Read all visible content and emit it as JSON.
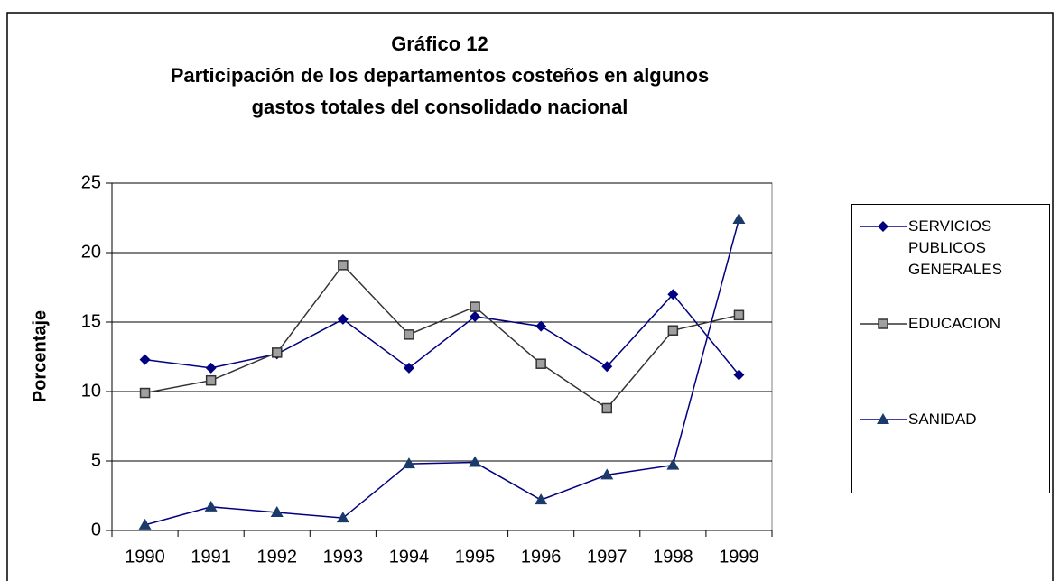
{
  "chart_data": {
    "type": "line",
    "title": [
      "Gráfico 12",
      "Participación de los departamentos costeños en algunos",
      "gastos totales del consolidado nacional"
    ],
    "y_label": "Porcentaje",
    "categories": [
      "1990",
      "1991",
      "1992",
      "1993",
      "1994",
      "1995",
      "1996",
      "1997",
      "1998",
      "1999"
    ],
    "series": [
      {
        "name": "SERVICIOS PUBLICOS GENERALES",
        "color": "#000080",
        "marker": "diamond",
        "values": [
          12.3,
          11.7,
          12.7,
          15.2,
          11.7,
          15.4,
          14.7,
          11.8,
          17.0,
          11.2
        ]
      },
      {
        "name": "EDUCACION",
        "color": "#333333",
        "marker": "square",
        "values": [
          9.9,
          10.8,
          12.8,
          19.1,
          14.1,
          16.1,
          12.0,
          8.8,
          14.4,
          15.5
        ]
      },
      {
        "name": "SANIDAD",
        "color": "#000080",
        "marker": "triangle",
        "values": [
          0.4,
          1.7,
          1.3,
          0.9,
          4.8,
          4.9,
          2.2,
          4.0,
          4.7,
          22.4
        ]
      }
    ],
    "ylim": [
      0,
      25
    ],
    "yticks": [
      0,
      5,
      10,
      15,
      20,
      25
    ],
    "grid": true
  }
}
